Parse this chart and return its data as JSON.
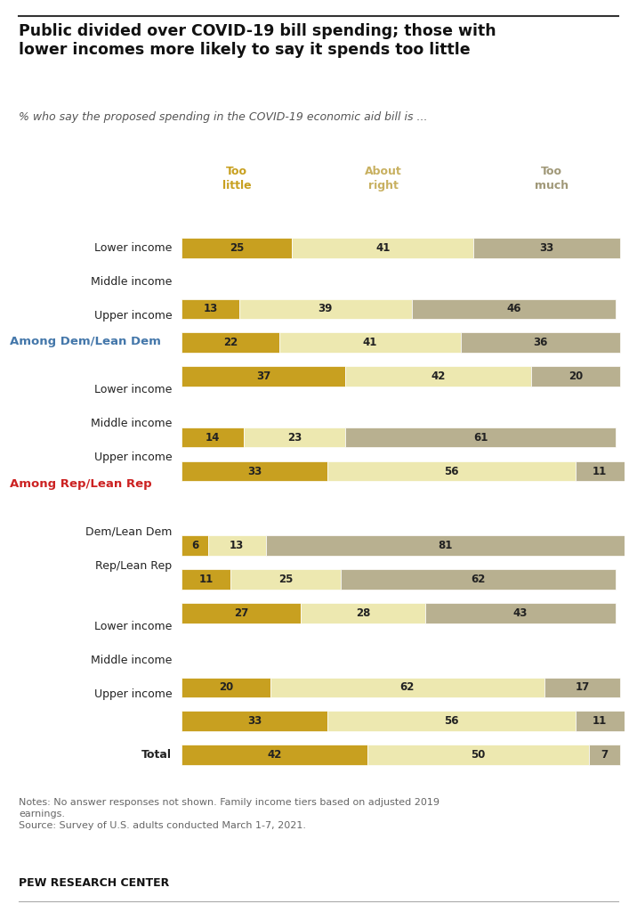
{
  "title": "Public divided over COVID-19 bill spending; those with\nlower incomes more likely to say it spends too little",
  "subtitle": "% who say the proposed spending in the COVID-19 economic aid bill is ...",
  "col_headers": [
    "Too\nlittle",
    "About\nright",
    "Too\nmuch"
  ],
  "col_header_colors": [
    "#c8a020",
    "#c8b060",
    "#a09878"
  ],
  "rows": [
    {
      "label": "Total",
      "group": "total",
      "values": [
        25,
        41,
        33
      ]
    },
    {
      "label": "Upper income",
      "group": "income",
      "values": [
        13,
        39,
        46
      ]
    },
    {
      "label": "Middle income",
      "group": "income",
      "values": [
        22,
        41,
        36
      ]
    },
    {
      "label": "Lower income",
      "group": "income",
      "values": [
        37,
        42,
        20
      ]
    },
    {
      "label": "Rep/Lean Rep",
      "group": "party",
      "values": [
        14,
        23,
        61
      ]
    },
    {
      "label": "Dem/Lean Dem",
      "group": "party",
      "values": [
        33,
        56,
        11
      ]
    },
    {
      "label": "Upper income",
      "group": "rep",
      "values": [
        6,
        13,
        81
      ]
    },
    {
      "label": "Middle income",
      "group": "rep",
      "values": [
        11,
        25,
        62
      ]
    },
    {
      "label": "Lower income",
      "group": "rep",
      "values": [
        27,
        28,
        43
      ]
    },
    {
      "label": "Upper income",
      "group": "dem",
      "values": [
        20,
        62,
        17
      ]
    },
    {
      "label": "Middle income",
      "group": "dem",
      "values": [
        33,
        56,
        11
      ]
    },
    {
      "label": "Lower income",
      "group": "dem",
      "values": [
        42,
        50,
        7
      ]
    }
  ],
  "section_labels": [
    {
      "text": "Among Rep/Lean Rep",
      "color": "#cc2222",
      "before_index": 6
    },
    {
      "text": "Among Dem/Lean Dem",
      "color": "#4477aa",
      "before_index": 9
    }
  ],
  "colors": [
    "#c8a020",
    "#ede8b0",
    "#b8b090"
  ],
  "bar_height": 0.6,
  "notes": "Notes: No answer responses not shown. Family income tiers based on adjusted 2019\nearnings.\nSource: Survey of U.S. adults conducted March 1-7, 2021.",
  "footer": "PEW RESEARCH CENTER",
  "bg_color": "#ffffff"
}
